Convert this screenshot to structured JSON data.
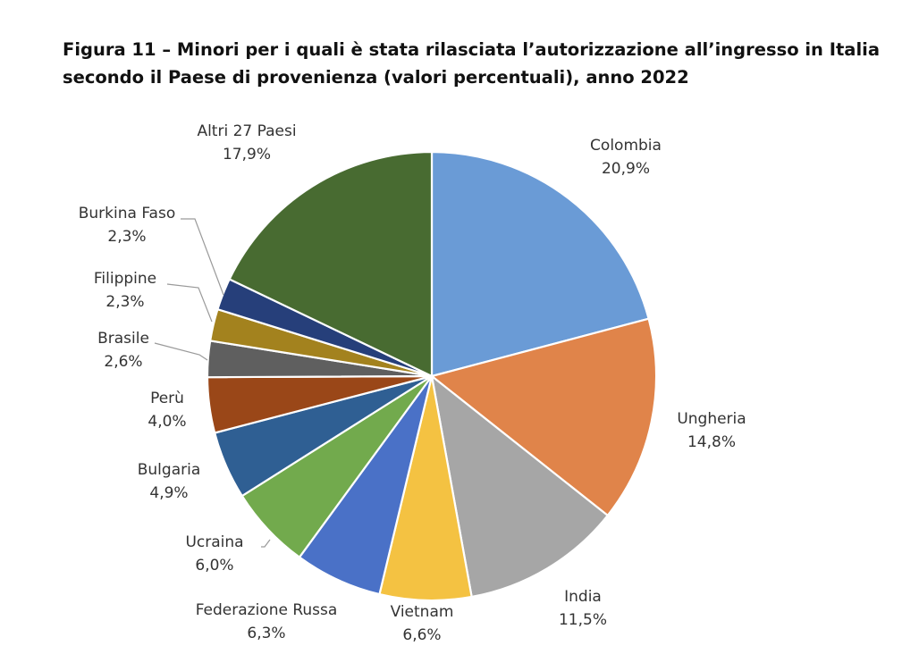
{
  "title": {
    "line1": "Figura 11 – Minori per i quali è stata rilasciata l’autorizzazione all’ingresso in Italia",
    "line2": "secondo il Paese di provenienza (valori percentuali), anno 2022"
  },
  "chart_data": {
    "type": "pie",
    "title": "Figura 11 – Minori per i quali è stata rilasciata l’autorizzazione all’ingresso in Italia secondo il Paese di provenienza (valori percentuali), anno 2022",
    "slices": [
      {
        "name": "Colombia",
        "value": 20.9,
        "label": "20,9%",
        "color": "#6a9bd6"
      },
      {
        "name": "Ungheria",
        "value": 14.8,
        "label": "14,8%",
        "color": "#e0844a"
      },
      {
        "name": "India",
        "value": 11.5,
        "label": "11,5%",
        "color": "#a6a6a6"
      },
      {
        "name": "Vietnam",
        "value": 6.6,
        "label": "6,6%",
        "color": "#f4c242"
      },
      {
        "name": "Federazione Russa",
        "value": 6.3,
        "label": "6,3%",
        "color": "#4a71c7"
      },
      {
        "name": "Ucraina",
        "value": 6.0,
        "label": "6,0%",
        "color": "#72aa4d"
      },
      {
        "name": "Bulgaria",
        "value": 4.9,
        "label": "4,9%",
        "color": "#2f5f93"
      },
      {
        "name": "Perù",
        "value": 4.0,
        "label": "4,0%",
        "color": "#9a4718"
      },
      {
        "name": "Brasile",
        "value": 2.6,
        "label": "2,6%",
        "color": "#5f5f5f"
      },
      {
        "name": "Filippine",
        "value": 2.3,
        "label": "2,3%",
        "color": "#a3821e"
      },
      {
        "name": "Burkina Faso",
        "value": 2.3,
        "label": "2,3%",
        "color": "#263f7a"
      },
      {
        "name": "Altri 27 Paesi",
        "value": 17.9,
        "label": "17,9%",
        "color": "#486b31"
      }
    ],
    "legend": "none",
    "data_labels": "outside"
  }
}
